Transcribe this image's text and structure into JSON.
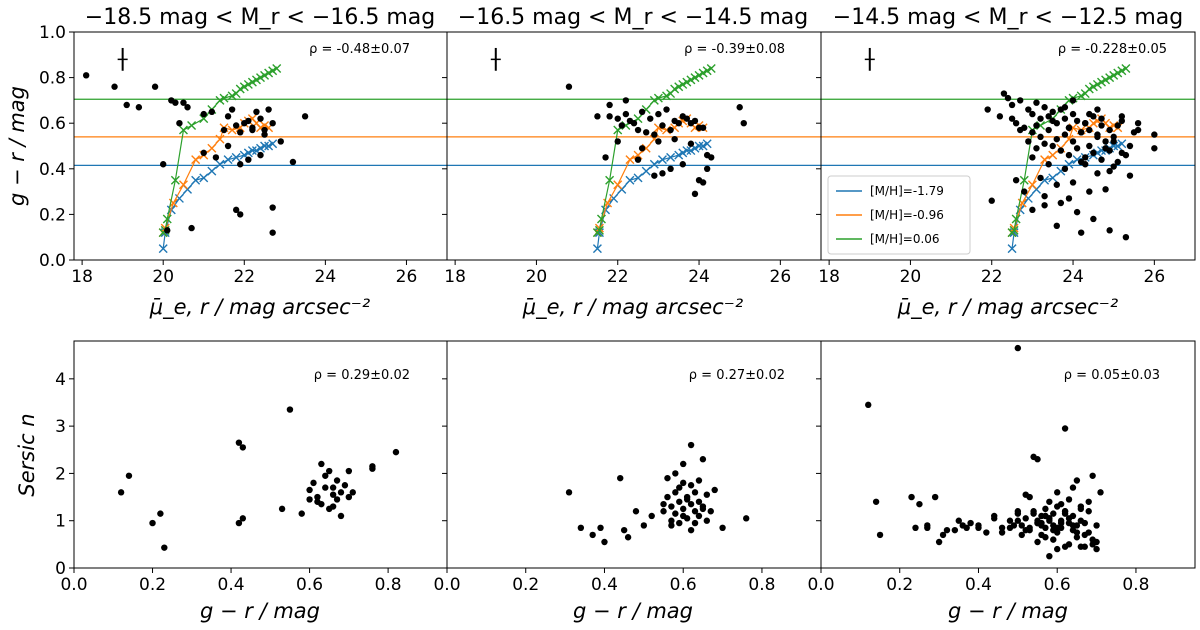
{
  "colors": {
    "metal_poor": "#1f77b4",
    "metal_mid": "#ff7f0e",
    "metal_rich": "#2ca02c",
    "points": "#000000"
  },
  "chart_data": {
    "type": "scatter",
    "panel_titles": [
      "−18.5 mag < M_r < −16.5 mag",
      "−16.5 mag < M_r < −14.5 mag",
      "−14.5 mag < M_r < −12.5 mag"
    ],
    "top_row": {
      "xlabel": "μ̄_e, r / mag arcsec⁻²",
      "ylabel": "g − r / mag",
      "xlim": [
        17.8,
        27.0
      ],
      "ylim": [
        0.0,
        1.0
      ],
      "xticks": [
        "18",
        "20",
        "22",
        "24",
        "26"
      ],
      "yticks": [
        "0.0",
        "0.2",
        "0.4",
        "0.6",
        "0.8",
        "1.0"
      ],
      "rho": [
        "ρ = -0.48±0.07",
        "ρ = -0.39±0.08",
        "ρ = -0.228±0.05"
      ],
      "hlines": [
        {
          "name": "[M/H]=-1.79",
          "y": 0.415,
          "color": "#1f77b4"
        },
        {
          "name": "[M/H]=-0.96",
          "y": 0.54,
          "color": "#ff7f0e"
        },
        {
          "name": "[M/H]=0.06",
          "y": 0.705,
          "color": "#2ca02c"
        }
      ],
      "legend": [
        "[M/H]=-1.79",
        "[M/H]=-0.96",
        "[M/H]=0.06"
      ],
      "error_bar": {
        "x": 19.0,
        "y": 0.88,
        "yerr": 0.05
      },
      "tracks": [
        {
          "name": "[M/H]=-1.79",
          "color": "#1f77b4",
          "x": [
            0,
            0.05,
            0.2,
            0.4,
            0.6,
            0.8,
            1.0,
            1.2,
            1.4,
            1.6,
            1.8,
            2.0,
            2.1,
            2.2,
            2.3,
            2.4,
            2.5,
            2.6,
            2.7
          ],
          "y": [
            0.05,
            0.12,
            0.22,
            0.27,
            0.31,
            0.35,
            0.36,
            0.39,
            0.42,
            0.44,
            0.45,
            0.46,
            0.47,
            0.48,
            0.48,
            0.49,
            0.5,
            0.5,
            0.51
          ]
        },
        {
          "name": "[M/H]=-0.96",
          "color": "#ff7f0e",
          "x": [
            0,
            0.05,
            0.25,
            0.5,
            0.8,
            1.0,
            1.2,
            1.4,
            1.5,
            1.7,
            1.9,
            2.0,
            2.1,
            2.2,
            2.3,
            2.4,
            2.5,
            2.6
          ],
          "y": [
            0.12,
            0.14,
            0.25,
            0.33,
            0.44,
            0.46,
            0.49,
            0.53,
            0.58,
            0.57,
            0.58,
            0.6,
            0.61,
            0.62,
            0.6,
            0.58,
            0.59,
            0.58
          ]
        },
        {
          "name": "[M/H]=0.06",
          "color": "#2ca02c",
          "x": [
            0,
            0.05,
            0.1,
            0.3,
            0.5,
            0.7,
            1.0,
            1.2,
            1.4,
            1.5,
            1.7,
            1.8,
            1.9,
            2.0,
            2.1,
            2.2,
            2.3,
            2.4,
            2.5,
            2.6,
            2.7,
            2.8
          ],
          "y": [
            0.12,
            0.13,
            0.18,
            0.35,
            0.57,
            0.59,
            0.62,
            0.66,
            0.7,
            0.71,
            0.72,
            0.73,
            0.75,
            0.76,
            0.77,
            0.78,
            0.79,
            0.8,
            0.81,
            0.82,
            0.83,
            0.84
          ]
        }
      ],
      "track_x_start": [
        20.0,
        21.5,
        22.5
      ],
      "panels": [
        {
          "x": [
            18.1,
            18.8,
            19.1,
            19.4,
            19.8,
            20.2,
            20.3,
            20.5,
            20.6,
            20.0,
            20.1,
            21.0,
            21.2,
            21.5,
            21.6,
            21.7,
            21.8,
            21.9,
            22.0,
            22.1,
            22.2,
            22.3,
            22.4,
            22.5,
            22.6,
            22.7,
            21.0,
            21.9,
            22.1,
            22.4,
            22.9,
            23.2,
            23.5,
            22.7,
            22.7,
            21.8,
            21.9,
            20.7,
            21.3,
            21.6,
            22.2,
            22.5,
            20.4
          ],
          "y": [
            0.81,
            0.76,
            0.68,
            0.67,
            0.76,
            0.7,
            0.69,
            0.69,
            0.67,
            0.42,
            0.13,
            0.64,
            0.65,
            0.57,
            0.63,
            0.66,
            0.59,
            0.56,
            0.6,
            0.61,
            0.57,
            0.65,
            0.62,
            0.57,
            0.66,
            0.6,
            0.47,
            0.42,
            0.44,
            0.46,
            0.52,
            0.43,
            0.63,
            0.23,
            0.12,
            0.22,
            0.2,
            0.14,
            0.45,
            0.5,
            0.58,
            0.55,
            0.6
          ]
        },
        {
          "x": [
            20.8,
            21.5,
            21.8,
            22.0,
            22.2,
            22.4,
            22.6,
            22.8,
            23.0,
            23.2,
            23.4,
            23.6,
            23.8,
            24.0,
            22.1,
            22.3,
            22.5,
            22.7,
            22.9,
            23.1,
            23.3,
            23.5,
            23.7,
            23.9,
            24.1,
            24.3,
            22.0,
            22.6,
            23.0,
            23.4,
            23.8,
            24.2,
            25.0,
            25.1,
            21.7,
            23.3,
            23.6,
            24.0,
            24.2,
            22.9,
            23.1,
            22.5,
            23.9,
            24.1,
            21.8,
            22.2
          ],
          "y": [
            0.76,
            0.63,
            0.63,
            0.62,
            0.64,
            0.6,
            0.65,
            0.62,
            0.64,
            0.66,
            0.61,
            0.63,
            0.6,
            0.58,
            0.59,
            0.61,
            0.57,
            0.56,
            0.55,
            0.59,
            0.57,
            0.6,
            0.62,
            0.61,
            0.58,
            0.45,
            0.52,
            0.49,
            0.52,
            0.53,
            0.51,
            0.46,
            0.67,
            0.6,
            0.45,
            0.4,
            0.42,
            0.35,
            0.4,
            0.37,
            0.38,
            0.44,
            0.29,
            0.34,
            0.68,
            0.7
          ]
        },
        {
          "x": [
            22.0,
            22.3,
            22.5,
            22.7,
            22.9,
            23.0,
            23.1,
            23.2,
            23.3,
            23.4,
            23.5,
            23.6,
            23.7,
            23.8,
            23.9,
            24.0,
            24.1,
            24.2,
            24.3,
            24.4,
            24.5,
            24.6,
            24.7,
            24.8,
            24.9,
            25.0,
            25.2,
            25.4,
            25.6,
            26.0,
            22.6,
            22.8,
            23.0,
            23.2,
            23.4,
            23.6,
            23.8,
            24.0,
            24.2,
            24.4,
            24.6,
            24.8,
            25.0,
            25.2,
            22.9,
            23.1,
            23.3,
            23.5,
            23.7,
            23.9,
            24.1,
            24.3,
            24.5,
            24.7,
            24.9,
            25.1,
            25.3,
            23.0,
            23.4,
            23.8,
            24.2,
            24.6,
            25.0,
            25.4,
            23.2,
            23.6,
            24.0,
            24.4,
            24.8,
            22.5,
            22.7,
            23.1,
            23.5,
            23.9,
            24.3,
            24.7,
            25.1,
            25.5,
            21.9,
            22.2,
            23.3,
            23.7,
            24.1,
            24.5,
            24.9,
            25.3,
            23.0,
            23.6,
            24.2,
            24.4,
            23.8,
            24.0,
            24.6,
            25.2,
            25.6,
            26.0,
            22.4,
            22.6,
            22.8,
            23.3,
            23.9,
            24.3,
            24.9
          ],
          "y": [
            0.26,
            0.73,
            0.68,
            0.7,
            0.66,
            0.64,
            0.69,
            0.62,
            0.67,
            0.63,
            0.65,
            0.6,
            0.66,
            0.62,
            0.58,
            0.64,
            0.61,
            0.56,
            0.6,
            0.57,
            0.63,
            0.55,
            0.59,
            0.52,
            0.57,
            0.54,
            0.61,
            0.5,
            0.57,
            0.55,
            0.6,
            0.58,
            0.56,
            0.54,
            0.57,
            0.53,
            0.55,
            0.52,
            0.56,
            0.5,
            0.54,
            0.49,
            0.52,
            0.47,
            0.52,
            0.49,
            0.51,
            0.5,
            0.48,
            0.46,
            0.49,
            0.45,
            0.47,
            0.44,
            0.48,
            0.43,
            0.46,
            0.45,
            0.42,
            0.4,
            0.43,
            0.38,
            0.41,
            0.37,
            0.36,
            0.33,
            0.34,
            0.3,
            0.31,
            0.62,
            0.57,
            0.59,
            0.61,
            0.58,
            0.6,
            0.62,
            0.59,
            0.56,
            0.66,
            0.63,
            0.28,
            0.25,
            0.21,
            0.18,
            0.13,
            0.1,
            0.22,
            0.15,
            0.12,
            0.64,
            0.67,
            0.7,
            0.66,
            0.63,
            0.6,
            0.49,
            0.71,
            0.35,
            0.3,
            0.24,
            0.27,
            0.42,
            0.39
          ]
        }
      ]
    },
    "bottom_row": {
      "xlabel": "g − r / mag",
      "ylabel": "Sersic n",
      "xlim": [
        0.0,
        0.95
      ],
      "ylim": [
        0.0,
        4.8
      ],
      "xticks": [
        "0.0",
        "0.2",
        "0.4",
        "0.6",
        "0.8"
      ],
      "yticks": [
        "0",
        "1",
        "2",
        "3",
        "4"
      ],
      "rho": [
        "ρ = 0.29±0.02",
        "ρ = 0.27±0.02",
        "ρ = 0.05±0.03"
      ],
      "panels": [
        {
          "x": [
            0.12,
            0.14,
            0.2,
            0.22,
            0.23,
            0.42,
            0.43,
            0.42,
            0.43,
            0.53,
            0.55,
            0.58,
            0.6,
            0.61,
            0.62,
            0.63,
            0.64,
            0.64,
            0.65,
            0.66,
            0.66,
            0.67,
            0.67,
            0.68,
            0.69,
            0.7,
            0.71,
            0.62,
            0.63,
            0.65,
            0.68,
            0.76,
            0.76,
            0.82,
            0.6,
            0.66,
            0.7
          ],
          "y": [
            1.6,
            1.95,
            0.95,
            1.15,
            0.43,
            2.65,
            2.55,
            0.95,
            1.05,
            1.25,
            3.35,
            1.15,
            1.65,
            1.8,
            1.5,
            1.35,
            1.7,
            1.95,
            2.05,
            1.55,
            1.3,
            1.45,
            1.85,
            1.6,
            1.75,
            2.05,
            1.6,
            1.4,
            2.2,
            1.25,
            1.1,
            2.1,
            2.15,
            2.45,
            1.45,
            1.7,
            1.5
          ]
        },
        {
          "x": [
            0.31,
            0.34,
            0.37,
            0.39,
            0.4,
            0.44,
            0.45,
            0.46,
            0.48,
            0.5,
            0.52,
            0.55,
            0.56,
            0.57,
            0.57,
            0.58,
            0.58,
            0.59,
            0.59,
            0.6,
            0.6,
            0.61,
            0.61,
            0.62,
            0.62,
            0.63,
            0.63,
            0.64,
            0.64,
            0.65,
            0.65,
            0.66,
            0.66,
            0.58,
            0.6,
            0.62,
            0.64,
            0.7,
            0.76,
            0.57,
            0.59,
            0.61,
            0.63,
            0.55,
            0.67,
            0.68,
            0.6,
            0.62,
            0.56,
            0.65
          ],
          "y": [
            1.6,
            0.85,
            0.7,
            0.85,
            0.55,
            1.9,
            0.8,
            0.65,
            1.2,
            0.9,
            1.1,
            1.2,
            1.5,
            1.0,
            1.3,
            1.15,
            1.6,
            1.4,
            0.95,
            1.8,
            1.25,
            1.5,
            1.05,
            1.35,
            1.75,
            1.2,
            1.6,
            1.1,
            1.4,
            2.3,
            1.3,
            1.0,
            1.55,
            2.0,
            2.2,
            2.6,
            1.85,
            0.85,
            1.05,
            0.9,
            1.7,
            1.45,
            0.95,
            1.35,
            1.2,
            1.65,
            1.1,
            0.8,
            1.9,
            1.25
          ]
        },
        {
          "x": [
            0.12,
            0.14,
            0.15,
            0.23,
            0.24,
            0.25,
            0.27,
            0.29,
            0.3,
            0.32,
            0.35,
            0.37,
            0.38,
            0.4,
            0.42,
            0.44,
            0.46,
            0.48,
            0.49,
            0.5,
            0.5,
            0.51,
            0.52,
            0.53,
            0.54,
            0.55,
            0.55,
            0.56,
            0.56,
            0.57,
            0.57,
            0.58,
            0.58,
            0.59,
            0.59,
            0.6,
            0.6,
            0.61,
            0.61,
            0.62,
            0.62,
            0.63,
            0.63,
            0.64,
            0.64,
            0.65,
            0.65,
            0.66,
            0.66,
            0.67,
            0.68,
            0.69,
            0.7,
            0.7,
            0.71,
            0.5,
            0.52,
            0.54,
            0.56,
            0.58,
            0.6,
            0.62,
            0.64,
            0.66,
            0.68,
            0.51,
            0.53,
            0.55,
            0.57,
            0.59,
            0.61,
            0.63,
            0.65,
            0.67,
            0.69,
            0.48,
            0.53,
            0.57,
            0.61,
            0.65,
            0.69,
            0.55,
            0.59,
            0.63,
            0.67,
            0.5,
            0.62,
            0.52,
            0.6,
            0.58,
            0.46,
            0.44,
            0.4,
            0.36,
            0.34,
            0.31,
            0.27,
            0.54,
            0.56,
            0.6,
            0.64,
            0.68,
            0.7,
            0.66,
            0.62,
            0.58,
            0.55,
            0.57
          ],
          "y": [
            3.45,
            1.4,
            0.7,
            1.5,
            0.85,
            1.35,
            0.9,
            1.5,
            0.55,
            0.8,
            1.0,
            0.85,
            0.95,
            0.9,
            0.75,
            1.1,
            0.85,
            1.0,
            0.9,
            4.65,
            1.2,
            0.9,
            1.05,
            0.8,
            1.15,
            2.3,
            0.95,
            1.1,
            0.7,
            1.25,
            0.85,
            1.05,
            1.4,
            0.9,
            1.15,
            0.75,
            1.3,
            1.0,
            0.85,
            2.95,
            1.2,
            0.95,
            1.45,
            0.8,
            1.1,
            1.85,
            0.9,
            1.25,
            1.0,
            0.7,
            1.4,
            1.95,
            0.55,
            0.9,
            1.6,
            1.0,
            0.8,
            1.2,
            0.95,
            1.05,
            0.85,
            1.15,
            0.9,
            1.3,
            0.75,
            0.7,
            0.85,
            1.0,
            1.1,
            0.8,
            0.95,
            1.05,
            0.75,
            0.95,
            0.6,
            0.85,
            1.5,
            0.65,
            1.35,
            0.65,
            0.5,
            0.55,
            0.6,
            0.5,
            0.45,
            1.15,
            0.45,
            1.55,
            0.4,
            0.25,
            0.75,
            1.05,
            0.85,
            0.9,
            0.8,
            0.7,
            0.85,
            2.35,
            0.9,
            1.6,
            1.7,
            1.2,
            0.4,
            0.45,
            1.2,
            1.0,
            0.95,
            1.1
          ]
        }
      ]
    }
  }
}
